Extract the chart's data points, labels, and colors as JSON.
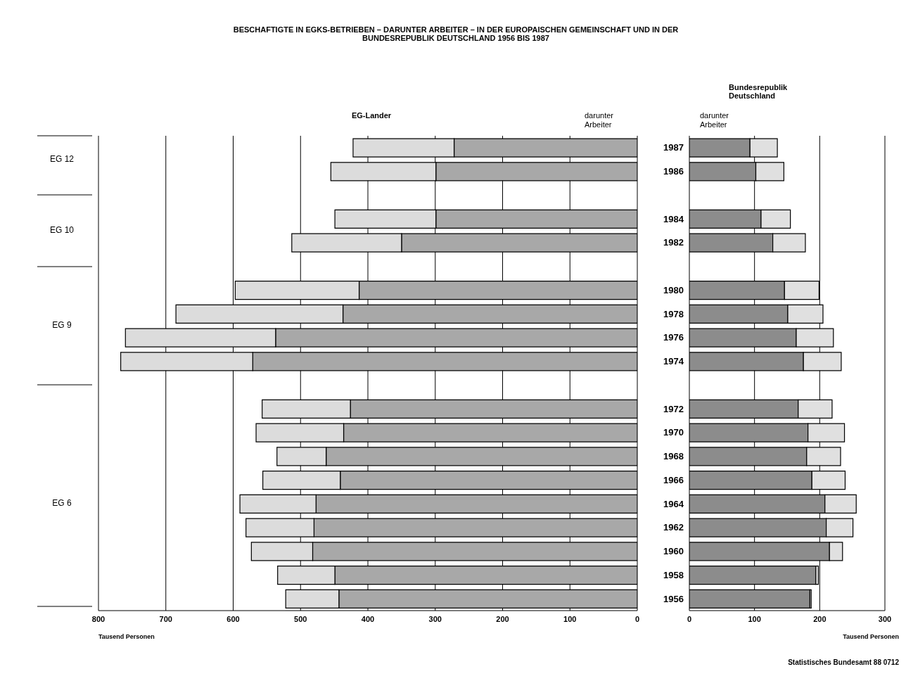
{
  "chart_data": [
    {
      "type": "bar",
      "title": "BESCHAFTIGTE IN EGKS-BETRIEBEN – DARUNTER ARBEITER – IN DER EUROPAISCHEN GEMEINSCHAFT UND IN DER BUNDESREPUBLIK DEUTSCHLAND 1956 BIS 1987",
      "subtitle": "EG-Lander",
      "xlabel": "Tausend Personen",
      "orientation": "horizontal",
      "stacked": true,
      "grid": "x",
      "tick_labels": "x",
      "categories": [
        "1987",
        "1986",
        null,
        "1984",
        "1982",
        null,
        "1980",
        "1978",
        "1976",
        "1974",
        null,
        "1972",
        "1970",
        "1968",
        "1966",
        "1964",
        "1962",
        "1960",
        "1958",
        "1956"
      ],
      "series": [
        {
          "name": "darunter Arbeiter",
          "color": "#a8a8a8",
          "values": [
            272,
            299,
            null,
            299,
            350,
            null,
            413,
            437,
            537,
            571,
            null,
            426,
            436,
            462,
            441,
            477,
            480,
            482,
            449,
            443
          ]
        },
        {
          "color": "#dcdcdc",
          "values": [
            150,
            156,
            null,
            150,
            163,
            null,
            184,
            248,
            223,
            196,
            null,
            131,
            130,
            73,
            115,
            113,
            101,
            91,
            85,
            79
          ]
        }
      ],
      "xlim": [
        800,
        0
      ],
      "xticks": [
        800,
        700,
        600,
        500,
        400,
        300,
        200,
        100,
        0
      ],
      "annotations": [
        "EG 12",
        "EG 10",
        "EG 9",
        "EG 6"
      ]
    },
    {
      "type": "bar",
      "title": "Bundesrepublik Deutschland",
      "xlabel": "Tausend Personen",
      "orientation": "horizontal",
      "stacked": true,
      "grid": "x",
      "categories": [
        "1987",
        "1986",
        null,
        "1984",
        "1982",
        null,
        "1980",
        "1978",
        "1976",
        "1974",
        null,
        "1972",
        "1970",
        "1968",
        "1966",
        "1964",
        "1962",
        "1960",
        "1958",
        "1956"
      ],
      "series": [
        {
          "name": "darunter Arbeiter",
          "color": "#8c8c8c",
          "values": [
            93,
            102,
            null,
            110,
            128,
            null,
            146,
            151,
            164,
            175,
            null,
            167,
            182,
            180,
            188,
            208,
            210,
            215,
            194,
            185
          ]
        },
        {
          "color": "#e0e0e0",
          "values": [
            42,
            43,
            null,
            45,
            50,
            null,
            53,
            54,
            57,
            58,
            null,
            52,
            56,
            52,
            51,
            48,
            41,
            20,
            4,
            2
          ]
        }
      ],
      "xlim": [
        0,
        300
      ],
      "xticks": [
        0,
        100,
        200,
        300
      ],
      "annotations": [
        "Statistisches Bundesamt 88 0712"
      ]
    }
  ]
}
